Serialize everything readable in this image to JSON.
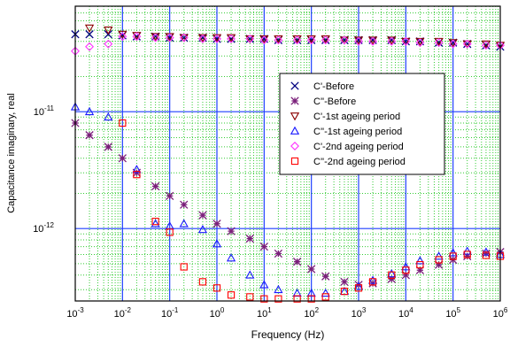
{
  "chart_data": {
    "type": "scatter",
    "title": "",
    "xlabel": "Frequency (Hz)",
    "ylabel": "Capacitance imaginary, real",
    "x_scale": "log",
    "y_scale": "log",
    "xlim": [
      0.001,
      1000000
    ],
    "ylim": [
      2.4e-13,
      8e-11
    ],
    "grid": true,
    "legend_position": "center-right",
    "colors": {
      "major_grid": "#1f3fff",
      "minor_grid": "#33cc33",
      "before": "#000080",
      "c2_before": "#7a1f7a",
      "ageing1_c1": "#8b0000",
      "ageing1_c2": "#1a1aff",
      "ageing2_c1": "#ff33ff",
      "ageing2_c2": "#ff0000"
    },
    "x_ticks": [
      {
        "base": "10",
        "exp": "-3",
        "value": 0.001
      },
      {
        "base": "10",
        "exp": "-2",
        "value": 0.01
      },
      {
        "base": "10",
        "exp": "-1",
        "value": 0.1
      },
      {
        "base": "10",
        "exp": "0",
        "value": 1
      },
      {
        "base": "10",
        "exp": "1",
        "value": 10
      },
      {
        "base": "10",
        "exp": "2",
        "value": 100
      },
      {
        "base": "10",
        "exp": "3",
        "value": 1000
      },
      {
        "base": "10",
        "exp": "4",
        "value": 10000
      },
      {
        "base": "10",
        "exp": "5",
        "value": 100000
      },
      {
        "base": "10",
        "exp": "6",
        "value": 1000000
      }
    ],
    "y_ticks": [
      {
        "base": "10",
        "exp": "-11",
        "value": 1e-11
      },
      {
        "base": "10",
        "exp": "-12",
        "value": 1e-12
      }
    ],
    "series": [
      {
        "name": "C'-Before",
        "marker": "x",
        "color": "#000080",
        "x": [
          0.001,
          0.002,
          0.005,
          0.01,
          0.02,
          0.05,
          0.1,
          0.2,
          0.5,
          1,
          2,
          5,
          10,
          20,
          50,
          100,
          200,
          500,
          1000,
          2000,
          5000,
          10000,
          20000,
          50000,
          100000,
          200000,
          500000,
          1000000
        ],
        "y": [
          4.6e-11,
          4.6e-11,
          4.6e-11,
          4.5e-11,
          4.4e-11,
          4.4e-11,
          4.3e-11,
          4.3e-11,
          4.3e-11,
          4.2e-11,
          4.2e-11,
          4.2e-11,
          4.2e-11,
          4.1e-11,
          4.1e-11,
          4.1e-11,
          4.1e-11,
          4.1e-11,
          4.1e-11,
          4.1e-11,
          4.1e-11,
          4e-11,
          4e-11,
          3.9e-11,
          3.9e-11,
          3.8e-11,
          3.7e-11,
          3.6e-11
        ]
      },
      {
        "name": "C''-Before",
        "marker": "asterisk",
        "color": "#7a1f7a",
        "x": [
          0.001,
          0.002,
          0.005,
          0.01,
          0.02,
          0.05,
          0.1,
          0.2,
          0.5,
          1,
          2,
          5,
          10,
          20,
          50,
          100,
          200,
          500,
          1000,
          2000,
          5000,
          10000,
          20000,
          50000,
          100000,
          200000,
          500000,
          1000000
        ],
        "y": [
          8e-12,
          6.3e-12,
          5e-12,
          4e-12,
          3e-12,
          2.3e-12,
          1.9e-12,
          1.6e-12,
          1.3e-12,
          1.1e-12,
          9.5e-13,
          8.2e-13,
          7e-13,
          6.1e-13,
          5.2e-13,
          4.5e-13,
          3.9e-13,
          3.5e-13,
          3.3e-13,
          3.4e-13,
          3.7e-13,
          4e-13,
          4.4e-13,
          4.9e-13,
          5.4e-13,
          5.8e-13,
          6.1e-13,
          6.3e-13
        ]
      },
      {
        "name": "C'-1st ageing period",
        "marker": "triangle-down",
        "color": "#8b0000",
        "x": [
          0.002,
          0.005,
          0.01,
          0.02,
          0.05,
          0.1,
          0.2,
          0.5,
          1,
          2,
          5,
          10,
          20,
          50,
          100,
          200,
          500,
          1000,
          2000,
          5000,
          10000,
          20000,
          50000,
          100000,
          200000,
          500000,
          1000000
        ],
        "y": [
          5.2e-11,
          5e-11,
          4.6e-11,
          4.5e-11,
          4.4e-11,
          4.4e-11,
          4.3e-11,
          4.3e-11,
          4.3e-11,
          4.3e-11,
          4.2e-11,
          4.2e-11,
          4.2e-11,
          4.2e-11,
          4.2e-11,
          4.2e-11,
          4.1e-11,
          4.1e-11,
          4.1e-11,
          4.1e-11,
          4e-11,
          4e-11,
          4e-11,
          3.9e-11,
          3.8e-11,
          3.8e-11,
          3.7e-11
        ]
      },
      {
        "name": "C''-1st ageing period",
        "marker": "triangle-up",
        "color": "#1a1aff",
        "x": [
          0.001,
          0.002,
          0.005,
          0.02,
          0.05,
          0.1,
          0.2,
          0.5,
          1,
          2,
          5,
          10,
          20,
          50,
          100,
          200,
          500,
          1000,
          2000,
          5000,
          10000,
          20000,
          50000,
          100000,
          200000,
          500000,
          1000000
        ],
        "y": [
          1.1e-11,
          1e-11,
          9e-12,
          3.2e-12,
          1.1e-12,
          1.05e-12,
          1.1e-12,
          9.8e-13,
          7.4e-13,
          5.6e-13,
          4e-13,
          3.3e-13,
          3e-13,
          2.8e-13,
          2.8e-13,
          2.8e-13,
          2.9e-13,
          3.2e-13,
          3.6e-13,
          4.1e-13,
          4.7e-13,
          5.3e-13,
          5.8e-13,
          6.2e-13,
          6.4e-13,
          6.3e-13,
          6e-13
        ]
      },
      {
        "name": "C'-2nd ageing period",
        "marker": "diamond",
        "color": "#ff33ff",
        "x": [
          0.001,
          0.002,
          0.005,
          0.01,
          0.02,
          0.05,
          0.1,
          0.2,
          0.5,
          1,
          2,
          5,
          10,
          20,
          50,
          100,
          200,
          500,
          1000,
          2000,
          5000,
          10000,
          20000,
          50000,
          100000,
          200000,
          500000,
          1000000
        ],
        "y": [
          3.3e-11,
          3.6e-11,
          3.8e-11,
          4.4e-11,
          4.4e-11,
          4.3e-11,
          4.3e-11,
          4.3e-11,
          4.2e-11,
          4.2e-11,
          4.2e-11,
          4.2e-11,
          4.1e-11,
          4.1e-11,
          4.1e-11,
          4.1e-11,
          4.1e-11,
          4.1e-11,
          4e-11,
          4e-11,
          4e-11,
          4e-11,
          3.9e-11,
          3.9e-11,
          3.8e-11,
          3.8e-11,
          3.7e-11,
          3.7e-11
        ]
      },
      {
        "name": "C''-2nd ageing period",
        "marker": "square",
        "color": "#ff0000",
        "x": [
          0.01,
          0.02,
          0.05,
          0.1,
          0.2,
          0.5,
          1,
          2,
          5,
          10,
          20,
          50,
          100,
          200,
          500,
          1000,
          2000,
          5000,
          10000,
          20000,
          50000,
          100000,
          200000,
          500000,
          1000000
        ],
        "y": [
          8e-12,
          2.9e-12,
          1.15e-12,
          9.3e-13,
          4.7e-13,
          3.5e-13,
          3.1e-13,
          2.7e-13,
          2.6e-13,
          2.5e-13,
          2.5e-13,
          2.5e-13,
          2.5e-13,
          2.6e-13,
          2.9e-13,
          3.1e-13,
          3.5e-13,
          4e-13,
          4.4e-13,
          4.9e-13,
          5.4e-13,
          5.8e-13,
          6e-13,
          5.9e-13,
          5.8e-13
        ]
      }
    ]
  }
}
